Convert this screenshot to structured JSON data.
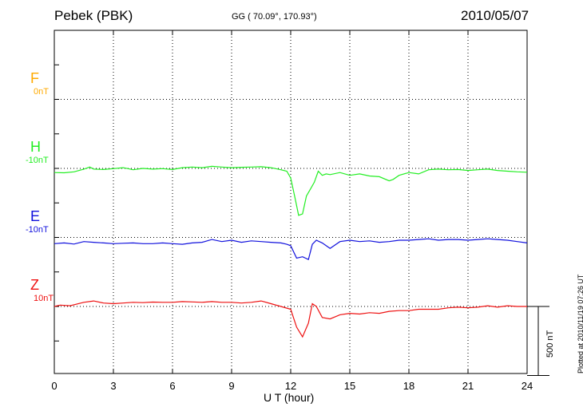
{
  "header": {
    "station": "Pebek (PBK)",
    "coords": "GG ( 70.09°, 170.93°)",
    "date": "2010/05/07"
  },
  "footer": {
    "plotted": "Plotted at 2010/11/19 07:26 UT"
  },
  "chart_data": {
    "type": "line",
    "title": "Pebek (PBK)",
    "xlabel": "U T (hour)",
    "ylabel": "",
    "xlim": [
      0,
      24
    ],
    "xticks": [
      "0",
      "3",
      "6",
      "9",
      "12",
      "15",
      "18",
      "21",
      "24"
    ],
    "scale_bar": "500 nT",
    "grid": true,
    "components": [
      {
        "name": "F",
        "baseline": "0nT",
        "color": "#ffaa00",
        "panel": 1,
        "values": []
      },
      {
        "name": "H",
        "baseline": "-10nT",
        "color": "#22ee22",
        "panel": 2,
        "x": [
          0,
          0.5,
          1,
          1.5,
          1.8,
          2,
          2.5,
          3,
          3.5,
          4,
          4.5,
          5,
          5.5,
          6,
          6.5,
          7,
          7.5,
          8,
          8.5,
          9,
          9.5,
          10,
          10.5,
          11,
          11.5,
          11.8,
          12,
          12.2,
          12.4,
          12.6,
          12.8,
          13,
          13.2,
          13.4,
          13.6,
          13.8,
          14,
          14.5,
          15,
          15.5,
          16,
          16.5,
          17,
          17.2,
          17.5,
          18,
          18.5,
          19,
          19.5,
          20,
          20.5,
          21,
          21.5,
          22,
          22.5,
          23,
          23.5,
          24
        ],
        "values": [
          -30,
          -32,
          -25,
          -5,
          10,
          -5,
          -8,
          -2,
          5,
          -10,
          0,
          -5,
          -2,
          -8,
          5,
          10,
          5,
          15,
          10,
          5,
          8,
          10,
          12,
          5,
          -10,
          -20,
          -70,
          -200,
          -340,
          -330,
          -200,
          -150,
          -100,
          -20,
          -50,
          -40,
          -45,
          -30,
          -50,
          -40,
          -55,
          -60,
          -90,
          -80,
          -50,
          -30,
          -40,
          -10,
          -5,
          -10,
          -8,
          -15,
          -10,
          -5,
          -15,
          -20,
          -25,
          -28
        ]
      },
      {
        "name": "E",
        "baseline": "-10nT",
        "color": "#1111dd",
        "panel": 3,
        "x": [
          0,
          0.5,
          1,
          1.5,
          2,
          2.5,
          3,
          3.5,
          4,
          4.5,
          5,
          5.5,
          6,
          6.5,
          7,
          7.5,
          8,
          8.5,
          9,
          9.5,
          10,
          10.5,
          11,
          11.5,
          11.8,
          12,
          12.3,
          12.6,
          12.9,
          13.1,
          13.3,
          13.6,
          14,
          14.5,
          15,
          15.5,
          16,
          16.5,
          17,
          17.5,
          18,
          18.5,
          19,
          19.5,
          20,
          20.5,
          21,
          21.5,
          22,
          22.5,
          23,
          23.5,
          24
        ],
        "values": [
          -45,
          -40,
          -48,
          -30,
          -35,
          -40,
          -45,
          -42,
          -40,
          -45,
          -45,
          -40,
          -45,
          -50,
          -40,
          -35,
          -15,
          -30,
          -20,
          -35,
          -25,
          -30,
          -35,
          -40,
          -50,
          -60,
          -150,
          -140,
          -160,
          -50,
          -20,
          -40,
          -80,
          -30,
          -20,
          -30,
          -25,
          -35,
          -30,
          -20,
          -20,
          -15,
          -10,
          -20,
          -15,
          -15,
          -20,
          -15,
          -10,
          -15,
          -20,
          -30,
          -40
        ]
      },
      {
        "name": "Z",
        "baseline": "10nT",
        "color": "#ee1111",
        "panel": 4,
        "x": [
          0,
          0.3,
          0.8,
          1.5,
          2,
          2.5,
          3,
          3.5,
          4,
          4.5,
          5,
          5.5,
          6,
          6.5,
          7,
          7.5,
          8,
          8.5,
          9,
          9.5,
          10,
          10.5,
          11,
          11.5,
          12,
          12.3,
          12.6,
          12.9,
          13.1,
          13.3,
          13.6,
          14,
          14.5,
          15,
          15.5,
          16,
          16.5,
          17,
          17.5,
          18,
          18.5,
          19,
          19.5,
          20,
          20.5,
          21,
          21.5,
          22,
          22.5,
          23,
          23.5,
          24
        ],
        "values": [
          0,
          10,
          5,
          30,
          40,
          25,
          20,
          25,
          30,
          28,
          32,
          30,
          30,
          35,
          33,
          30,
          35,
          30,
          30,
          25,
          30,
          40,
          20,
          0,
          -20,
          -150,
          -220,
          -120,
          20,
          0,
          -80,
          -90,
          -60,
          -50,
          -55,
          -45,
          -50,
          -35,
          -30,
          -30,
          -20,
          -20,
          -20,
          -10,
          -5,
          -10,
          -5,
          5,
          -5,
          5,
          0,
          0
        ]
      }
    ]
  }
}
